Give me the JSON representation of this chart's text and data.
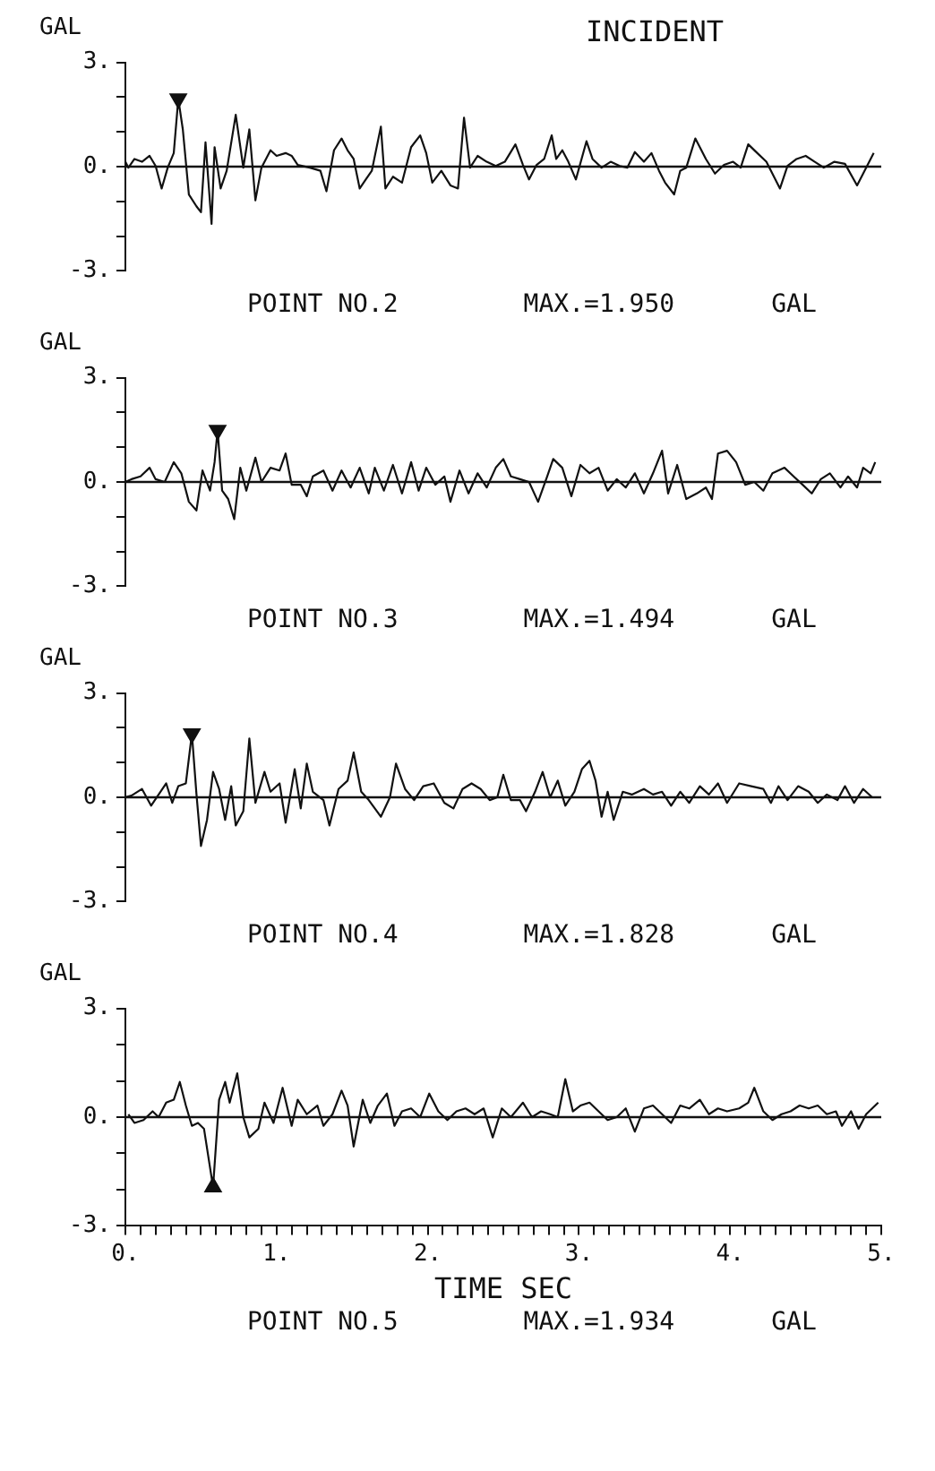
{
  "chart_data": [
    {
      "type": "line",
      "title": "INCIDENT",
      "ylabel": "GAL",
      "annotations": [
        "POINT NO.2",
        "MAX.=1.950",
        "GAL"
      ],
      "xlim": [
        0,
        5
      ],
      "ylim": [
        -3,
        3
      ],
      "yticks": [
        {
          "value": -3,
          "label": "-3."
        },
        {
          "value": -2,
          "label": null
        },
        {
          "value": -1,
          "label": null
        },
        {
          "value": 0,
          "label": "0."
        },
        {
          "value": 1,
          "label": null
        },
        {
          "value": 2,
          "label": null
        },
        {
          "value": 3,
          "label": "3."
        }
      ],
      "tick_labels": "y",
      "grid": false,
      "ref_lines": [
        {
          "axis": "y",
          "value": 0
        }
      ],
      "series": [
        {
          "type": "line",
          "color": "#111111",
          "x": [
            0.0,
            0.02,
            0.06,
            0.11,
            0.16,
            0.2,
            0.24,
            0.28,
            0.32,
            0.35,
            0.38,
            0.42,
            0.47,
            0.5,
            0.53,
            0.57,
            0.59,
            0.63,
            0.67,
            0.73,
            0.78,
            0.82,
            0.86,
            0.9,
            0.96,
            1.0,
            1.06,
            1.1,
            1.14,
            1.22,
            1.29,
            1.33,
            1.38,
            1.43,
            1.47,
            1.51,
            1.55,
            1.59,
            1.63,
            1.69,
            1.72,
            1.77,
            1.83,
            1.89,
            1.95,
            1.99,
            2.03,
            2.09,
            2.15,
            2.2,
            2.24,
            2.28,
            2.33,
            2.39,
            2.45,
            2.51,
            2.58,
            2.63,
            2.67,
            2.72,
            2.77,
            2.82,
            2.85,
            2.89,
            2.93,
            2.98,
            3.05,
            3.09,
            3.15,
            3.21,
            3.27,
            3.32,
            3.37,
            3.43,
            3.48,
            3.53,
            3.57,
            3.63,
            3.67,
            3.71,
            3.77,
            3.84,
            3.9,
            3.96,
            4.02,
            4.07,
            4.12,
            4.18,
            4.24,
            4.33,
            4.38,
            4.44,
            4.5,
            4.56,
            4.62,
            4.69,
            4.76,
            4.84,
            4.9,
            4.95
          ],
          "values": [
            0.14,
            -0.03,
            0.22,
            0.14,
            0.31,
            0.02,
            -0.63,
            -0.03,
            0.39,
            1.95,
            1.07,
            -0.8,
            -1.14,
            -1.31,
            0.7,
            -1.65,
            0.56,
            -0.63,
            -0.12,
            1.49,
            -0.03,
            1.07,
            -0.97,
            -0.03,
            0.47,
            0.31,
            0.39,
            0.31,
            0.05,
            -0.03,
            -0.12,
            -0.71,
            0.47,
            0.81,
            0.47,
            0.22,
            -0.63,
            -0.37,
            -0.12,
            1.15,
            -0.63,
            -0.29,
            -0.46,
            0.56,
            0.9,
            0.39,
            -0.46,
            -0.12,
            -0.54,
            -0.63,
            1.41,
            -0.03,
            0.31,
            0.14,
            0.02,
            0.14,
            0.64,
            0.05,
            -0.37,
            0.05,
            0.22,
            0.9,
            0.22,
            0.47,
            0.14,
            -0.37,
            0.73,
            0.22,
            -0.03,
            0.14,
            0.02,
            -0.03,
            0.42,
            0.14,
            0.39,
            -0.12,
            -0.46,
            -0.8,
            -0.12,
            -0.03,
            0.81,
            0.22,
            -0.2,
            0.05,
            0.14,
            -0.03,
            0.64,
            0.39,
            0.14,
            -0.63,
            0.02,
            0.22,
            0.31,
            0.14,
            -0.03,
            0.14,
            0.08,
            -0.54,
            -0.03,
            0.39
          ]
        },
        {
          "type": "scatter",
          "marker": "triangle",
          "color": "#111111",
          "x": [
            0.35
          ],
          "values": [
            1.95
          ]
        }
      ]
    },
    {
      "type": "line",
      "ylabel": "GAL",
      "annotations": [
        "POINT NO.3",
        "MAX.=1.494",
        "GAL"
      ],
      "xlim": [
        0,
        5
      ],
      "ylim": [
        -3,
        3
      ],
      "yticks": [
        {
          "value": -3,
          "label": "-3."
        },
        {
          "value": -2,
          "label": null
        },
        {
          "value": -1,
          "label": null
        },
        {
          "value": 0,
          "label": "0."
        },
        {
          "value": 1,
          "label": null
        },
        {
          "value": 2,
          "label": null
        },
        {
          "value": 3,
          "label": "3."
        }
      ],
      "tick_labels": "y",
      "grid": false,
      "ref_lines": [
        {
          "axis": "y",
          "value": 0
        }
      ],
      "series": [
        {
          "type": "line",
          "color": "#111111",
          "x": [
            0.0,
            0.04,
            0.1,
            0.16,
            0.2,
            0.26,
            0.32,
            0.37,
            0.42,
            0.47,
            0.51,
            0.56,
            0.59,
            0.61,
            0.64,
            0.68,
            0.72,
            0.76,
            0.8,
            0.86,
            0.9,
            0.96,
            1.02,
            1.06,
            1.1,
            1.16,
            1.2,
            1.24,
            1.31,
            1.37,
            1.43,
            1.49,
            1.55,
            1.61,
            1.65,
            1.71,
            1.77,
            1.83,
            1.89,
            1.94,
            1.99,
            2.05,
            2.11,
            2.15,
            2.21,
            2.27,
            2.33,
            2.39,
            2.45,
            2.5,
            2.55,
            2.61,
            2.67,
            2.73,
            2.79,
            2.83,
            2.89,
            2.95,
            3.01,
            3.07,
            3.13,
            3.19,
            3.25,
            3.31,
            3.37,
            3.43,
            3.49,
            3.55,
            3.59,
            3.65,
            3.71,
            3.78,
            3.84,
            3.88,
            3.92,
            3.98,
            4.04,
            4.1,
            4.16,
            4.22,
            4.28,
            4.36,
            4.42,
            4.48,
            4.54,
            4.6,
            4.66,
            4.73,
            4.78,
            4.84,
            4.88,
            4.93,
            4.96
          ],
          "values": [
            0.0,
            0.08,
            0.16,
            0.41,
            0.08,
            0.0,
            0.57,
            0.25,
            -0.57,
            -0.82,
            0.33,
            -0.25,
            0.57,
            1.49,
            -0.25,
            -0.49,
            -1.07,
            0.41,
            -0.25,
            0.7,
            0.0,
            0.41,
            0.33,
            0.82,
            -0.08,
            -0.08,
            -0.41,
            0.16,
            0.33,
            -0.25,
            0.33,
            -0.16,
            0.41,
            -0.33,
            0.41,
            -0.25,
            0.49,
            -0.33,
            0.57,
            -0.25,
            0.41,
            -0.08,
            0.16,
            -0.57,
            0.33,
            -0.33,
            0.25,
            -0.16,
            0.41,
            0.66,
            0.16,
            0.08,
            0.0,
            -0.57,
            0.16,
            0.66,
            0.41,
            -0.41,
            0.49,
            0.25,
            0.41,
            -0.25,
            0.08,
            -0.16,
            0.25,
            -0.33,
            0.25,
            0.9,
            -0.33,
            0.49,
            -0.49,
            -0.33,
            -0.16,
            -0.49,
            0.82,
            0.9,
            0.57,
            -0.08,
            0.0,
            -0.25,
            0.25,
            0.41,
            0.16,
            -0.08,
            -0.33,
            0.08,
            0.25,
            -0.16,
            0.16,
            -0.16,
            0.41,
            0.25,
            0.57
          ]
        },
        {
          "type": "scatter",
          "marker": "triangle",
          "color": "#111111",
          "x": [
            0.61
          ],
          "values": [
            1.49
          ]
        }
      ]
    },
    {
      "type": "line",
      "ylabel": "GAL",
      "annotations": [
        "POINT NO.4",
        "MAX.=1.828",
        "GAL"
      ],
      "xlim": [
        0,
        5
      ],
      "ylim": [
        -3,
        3
      ],
      "yticks": [
        {
          "value": -3,
          "label": "-3."
        },
        {
          "value": -2,
          "label": null
        },
        {
          "value": -1,
          "label": null
        },
        {
          "value": 0,
          "label": "0."
        },
        {
          "value": 1,
          "label": null
        },
        {
          "value": 2,
          "label": null
        },
        {
          "value": 3,
          "label": "3."
        }
      ],
      "tick_labels": "y",
      "grid": false,
      "ref_lines": [
        {
          "axis": "y",
          "value": 0
        }
      ],
      "series": [
        {
          "type": "line",
          "color": "#111111",
          "x": [
            0.0,
            0.04,
            0.11,
            0.17,
            0.22,
            0.27,
            0.31,
            0.35,
            0.4,
            0.44,
            0.47,
            0.5,
            0.54,
            0.58,
            0.62,
            0.66,
            0.7,
            0.73,
            0.78,
            0.82,
            0.86,
            0.92,
            0.96,
            1.02,
            1.06,
            1.12,
            1.16,
            1.2,
            1.24,
            1.31,
            1.35,
            1.41,
            1.47,
            1.51,
            1.56,
            1.61,
            1.69,
            1.75,
            1.79,
            1.85,
            1.91,
            1.97,
            2.04,
            2.11,
            2.17,
            2.23,
            2.29,
            2.35,
            2.41,
            2.46,
            2.5,
            2.55,
            2.61,
            2.65,
            2.71,
            2.76,
            2.81,
            2.86,
            2.91,
            2.97,
            3.02,
            3.07,
            3.11,
            3.15,
            3.19,
            3.23,
            3.29,
            3.35,
            3.43,
            3.49,
            3.55,
            3.61,
            3.67,
            3.73,
            3.8,
            3.86,
            3.92,
            3.98,
            4.06,
            4.14,
            4.22,
            4.27,
            4.32,
            4.38,
            4.45,
            4.52,
            4.58,
            4.64,
            4.71,
            4.76,
            4.82,
            4.88,
            4.94
          ],
          "values": [
            0.0,
            0.05,
            0.24,
            -0.24,
            0.08,
            0.4,
            -0.16,
            0.32,
            0.4,
            1.83,
            0.1,
            -1.4,
            -0.65,
            0.73,
            0.24,
            -0.65,
            0.32,
            -0.81,
            -0.4,
            1.69,
            -0.16,
            0.73,
            0.16,
            0.4,
            -0.73,
            0.81,
            -0.32,
            0.97,
            0.16,
            -0.08,
            -0.81,
            0.24,
            0.48,
            1.29,
            0.16,
            -0.08,
            -0.56,
            0.0,
            0.97,
            0.24,
            -0.08,
            0.32,
            0.4,
            -0.16,
            -0.32,
            0.24,
            0.4,
            0.24,
            -0.08,
            0.0,
            0.65,
            -0.08,
            -0.08,
            -0.4,
            0.16,
            0.73,
            0.0,
            0.48,
            -0.24,
            0.16,
            0.81,
            1.05,
            0.48,
            -0.56,
            0.16,
            -0.65,
            0.16,
            0.08,
            0.24,
            0.08,
            0.16,
            -0.24,
            0.16,
            -0.16,
            0.32,
            0.08,
            0.4,
            -0.16,
            0.4,
            0.32,
            0.24,
            -0.16,
            0.32,
            -0.08,
            0.32,
            0.16,
            -0.16,
            0.08,
            -0.08,
            0.32,
            -0.16,
            0.24,
            0.0
          ]
        },
        {
          "type": "scatter",
          "marker": "triangle",
          "color": "#111111",
          "x": [
            0.44
          ],
          "values": [
            1.83
          ]
        }
      ]
    },
    {
      "type": "line",
      "ylabel": "GAL",
      "xlabel": "TIME SEC",
      "annotations": [
        "POINT NO.5",
        "MAX.=1.934",
        "GAL"
      ],
      "xlim": [
        0,
        5
      ],
      "ylim": [
        -3,
        3
      ],
      "xticks": [
        {
          "value": 0,
          "label": "0."
        },
        {
          "value": 0.1,
          "label": null
        },
        {
          "value": 0.2,
          "label": null
        },
        {
          "value": 0.3,
          "label": null
        },
        {
          "value": 0.4,
          "label": null
        },
        {
          "value": 0.5,
          "label": null
        },
        {
          "value": 0.6,
          "label": null
        },
        {
          "value": 0.7,
          "label": null
        },
        {
          "value": 0.8,
          "label": null
        },
        {
          "value": 0.9,
          "label": null
        },
        {
          "value": 1,
          "label": "1."
        },
        {
          "value": 1.1,
          "label": null
        },
        {
          "value": 1.2,
          "label": null
        },
        {
          "value": 1.3,
          "label": null
        },
        {
          "value": 1.4,
          "label": null
        },
        {
          "value": 1.5,
          "label": null
        },
        {
          "value": 1.6,
          "label": null
        },
        {
          "value": 1.7,
          "label": null
        },
        {
          "value": 1.8,
          "label": null
        },
        {
          "value": 1.9,
          "label": null
        },
        {
          "value": 2,
          "label": "2."
        },
        {
          "value": 2.1,
          "label": null
        },
        {
          "value": 2.2,
          "label": null
        },
        {
          "value": 2.3,
          "label": null
        },
        {
          "value": 2.4,
          "label": null
        },
        {
          "value": 2.5,
          "label": null
        },
        {
          "value": 2.6,
          "label": null
        },
        {
          "value": 2.7,
          "label": null
        },
        {
          "value": 2.8,
          "label": null
        },
        {
          "value": 2.9,
          "label": null
        },
        {
          "value": 3,
          "label": "3."
        },
        {
          "value": 3.1,
          "label": null
        },
        {
          "value": 3.2,
          "label": null
        },
        {
          "value": 3.3,
          "label": null
        },
        {
          "value": 3.4,
          "label": null
        },
        {
          "value": 3.5,
          "label": null
        },
        {
          "value": 3.6,
          "label": null
        },
        {
          "value": 3.7,
          "label": null
        },
        {
          "value": 3.8,
          "label": null
        },
        {
          "value": 3.9,
          "label": null
        },
        {
          "value": 4,
          "label": "4."
        },
        {
          "value": 4.1,
          "label": null
        },
        {
          "value": 4.2,
          "label": null
        },
        {
          "value": 4.3,
          "label": null
        },
        {
          "value": 4.4,
          "label": null
        },
        {
          "value": 4.5,
          "label": null
        },
        {
          "value": 4.6,
          "label": null
        },
        {
          "value": 4.7,
          "label": null
        },
        {
          "value": 4.8,
          "label": null
        },
        {
          "value": 4.9,
          "label": null
        },
        {
          "value": 5,
          "label": "5."
        }
      ],
      "yticks": [
        {
          "value": -3,
          "label": "-3."
        },
        {
          "value": -2,
          "label": null
        },
        {
          "value": -1,
          "label": null
        },
        {
          "value": 0,
          "label": "0."
        },
        {
          "value": 1,
          "label": null
        },
        {
          "value": 2,
          "label": null
        },
        {
          "value": 3,
          "label": "3."
        }
      ],
      "grid": false,
      "ref_lines": [
        {
          "axis": "y",
          "value": 0
        }
      ],
      "series": [
        {
          "type": "line",
          "color": "#111111",
          "x": [
            0.02,
            0.06,
            0.12,
            0.18,
            0.22,
            0.27,
            0.32,
            0.36,
            0.4,
            0.44,
            0.48,
            0.52,
            0.58,
            0.62,
            0.66,
            0.69,
            0.74,
            0.78,
            0.82,
            0.88,
            0.92,
            0.98,
            1.04,
            1.1,
            1.14,
            1.2,
            1.27,
            1.31,
            1.37,
            1.43,
            1.47,
            1.51,
            1.57,
            1.62,
            1.67,
            1.73,
            1.78,
            1.83,
            1.89,
            1.95,
            2.01,
            2.07,
            2.13,
            2.19,
            2.25,
            2.31,
            2.37,
            2.43,
            2.49,
            2.55,
            2.63,
            2.69,
            2.75,
            2.81,
            2.86,
            2.91,
            2.96,
            3.01,
            3.07,
            3.13,
            3.19,
            3.25,
            3.31,
            3.37,
            3.43,
            3.49,
            3.55,
            3.61,
            3.67,
            3.73,
            3.8,
            3.86,
            3.92,
            3.98,
            4.06,
            4.12,
            4.16,
            4.22,
            4.28,
            4.34,
            4.4,
            4.46,
            4.52,
            4.58,
            4.64,
            4.7,
            4.74,
            4.8,
            4.85,
            4.9,
            4.98
          ],
          "values": [
            0.08,
            -0.16,
            -0.08,
            0.16,
            0.0,
            0.4,
            0.48,
            0.97,
            0.32,
            -0.24,
            -0.16,
            -0.32,
            -1.93,
            0.48,
            0.97,
            0.4,
            1.21,
            0.0,
            -0.56,
            -0.32,
            0.4,
            -0.16,
            0.81,
            -0.24,
            0.48,
            0.08,
            0.32,
            -0.24,
            0.08,
            0.73,
            0.32,
            -0.81,
            0.48,
            -0.16,
            0.32,
            0.65,
            -0.24,
            0.16,
            0.24,
            0.0,
            0.65,
            0.16,
            -0.08,
            0.16,
            0.24,
            0.08,
            0.24,
            -0.56,
            0.24,
            0.0,
            0.4,
            0.0,
            0.16,
            0.08,
            0.0,
            1.05,
            0.16,
            0.32,
            0.4,
            0.16,
            -0.08,
            0.0,
            0.24,
            -0.4,
            0.24,
            0.32,
            0.08,
            -0.16,
            0.32,
            0.24,
            0.48,
            0.08,
            0.24,
            0.16,
            0.24,
            0.4,
            0.81,
            0.16,
            -0.08,
            0.08,
            0.16,
            0.32,
            0.24,
            0.32,
            0.08,
            0.16,
            -0.24,
            0.16,
            -0.32,
            0.08,
            0.4
          ]
        },
        {
          "type": "scatter",
          "marker": "triangle",
          "color": "#111111",
          "x": [
            0.58
          ],
          "values": [
            -1.93
          ]
        }
      ]
    }
  ]
}
